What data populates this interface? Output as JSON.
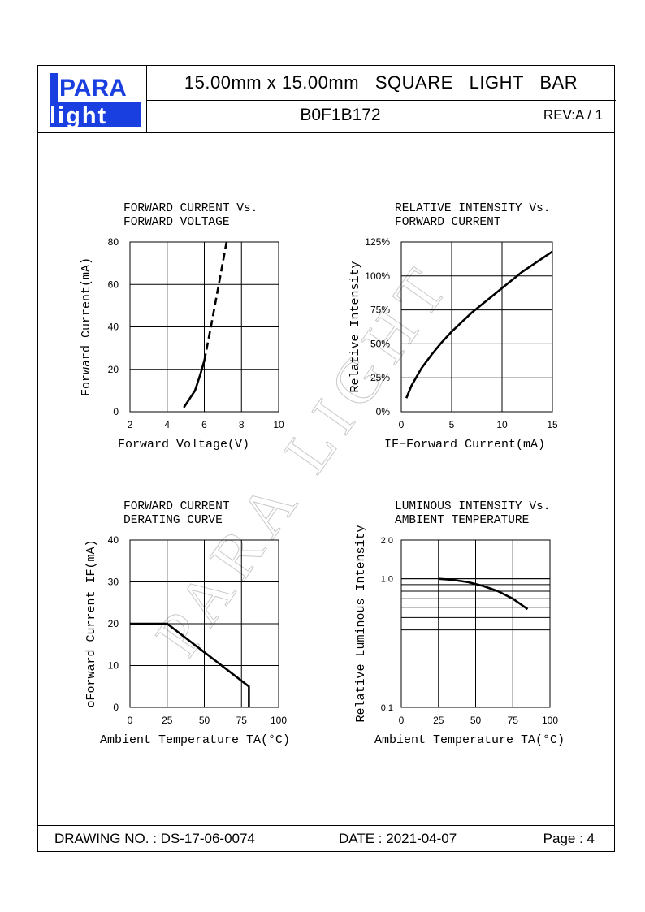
{
  "header": {
    "logo_top": "PARA",
    "logo_bottom": "light",
    "title": "15.00mm x 15.00mm   SQUARE   LIGHT   BAR",
    "part_number": "B0F1B172",
    "revision": "REV:A / 1"
  },
  "footer": {
    "drawing_no": "DRAWING NO. : DS-17-06-0074",
    "date": "DATE : 2021-04-07",
    "page": "Page : 4"
  },
  "watermark": "PARA LIGHT",
  "colors": {
    "ink": "#000000",
    "logo_blue": "#1a3fe0",
    "watermark": "#cfcfcf"
  },
  "chart_data": [
    {
      "type": "line",
      "title_lines": [
        "FORWARD  CURRENT  Vs.",
        "FORWARD  VOLTAGE"
      ],
      "xlabel": "Forward Voltage(V)",
      "ylabel": "Forward Current(mA)",
      "xlim": [
        2,
        10
      ],
      "ylim": [
        0,
        80
      ],
      "x_ticks": [
        "2",
        "4",
        "6",
        "8",
        "10"
      ],
      "y_ticks": [
        "0",
        "20",
        "40",
        "60",
        "80"
      ],
      "grid": true,
      "series": [
        {
          "style": "solid",
          "x": [
            4.9,
            5.2,
            5.5,
            5.8,
            6.0
          ],
          "y": [
            2,
            6,
            10,
            18,
            24
          ]
        },
        {
          "style": "dashed",
          "x": [
            6.0,
            6.4,
            6.8,
            7.2
          ],
          "y": [
            24,
            42,
            61,
            80
          ]
        }
      ]
    },
    {
      "type": "line",
      "title_lines": [
        "RELATIVE  INTENSITY  Vs.",
        "FORWARD  CURRENT"
      ],
      "xlabel": "IF−Forward Current(mA)",
      "ylabel": "Relative Intensity",
      "xlim": [
        0,
        15
      ],
      "ylim": [
        0,
        125
      ],
      "x_ticks": [
        "0",
        "5",
        "10",
        "15"
      ],
      "y_ticks": [
        "0%",
        "25%",
        "50%",
        "75%",
        "100%",
        "125%"
      ],
      "grid": true,
      "series": [
        {
          "style": "solid",
          "x": [
            0.5,
            1,
            2,
            3,
            4,
            5,
            6,
            7,
            8,
            9,
            10,
            11,
            12,
            13,
            14,
            15
          ],
          "y": [
            10,
            19,
            32,
            42,
            51,
            59,
            66,
            73,
            79,
            85,
            91,
            97,
            103,
            108,
            113,
            118
          ]
        }
      ]
    },
    {
      "type": "line",
      "title_lines": [
        "FORWARD  CURRENT",
        "DERATING  CURVE"
      ],
      "xlabel": "Ambient Temperature TA(°C)",
      "ylabel": "Forward Current IF(mA)",
      "ylabel_prefix": "o",
      "xlim": [
        0,
        100
      ],
      "ylim": [
        0,
        40
      ],
      "x_ticks": [
        "0",
        "25",
        "50",
        "75",
        "100"
      ],
      "y_ticks": [
        "0",
        "10",
        "20",
        "30",
        "40"
      ],
      "grid": true,
      "series": [
        {
          "style": "solid",
          "x": [
            0,
            25,
            80,
            80
          ],
          "y": [
            20,
            20,
            5,
            0
          ]
        }
      ]
    },
    {
      "type": "line",
      "title_lines": [
        "LUMINOUS  INTENSITY  Vs.",
        "AMBIENT  TEMPERATURE"
      ],
      "xlabel": "Ambient Temperature TA(°C)",
      "ylabel": "Relative Luminous Intensity",
      "y_scale": "log",
      "xlim": [
        0,
        100
      ],
      "ylim": [
        0.1,
        2.0
      ],
      "x_ticks": [
        "0",
        "25",
        "50",
        "75",
        "100"
      ],
      "y_ticks": [
        "0.1",
        "1.0",
        "2.0"
      ],
      "grid": true,
      "series": [
        {
          "style": "solid",
          "x": [
            25,
            35,
            45,
            55,
            65,
            75,
            85
          ],
          "y": [
            1.0,
            0.98,
            0.94,
            0.88,
            0.8,
            0.7,
            0.58
          ]
        }
      ]
    }
  ]
}
